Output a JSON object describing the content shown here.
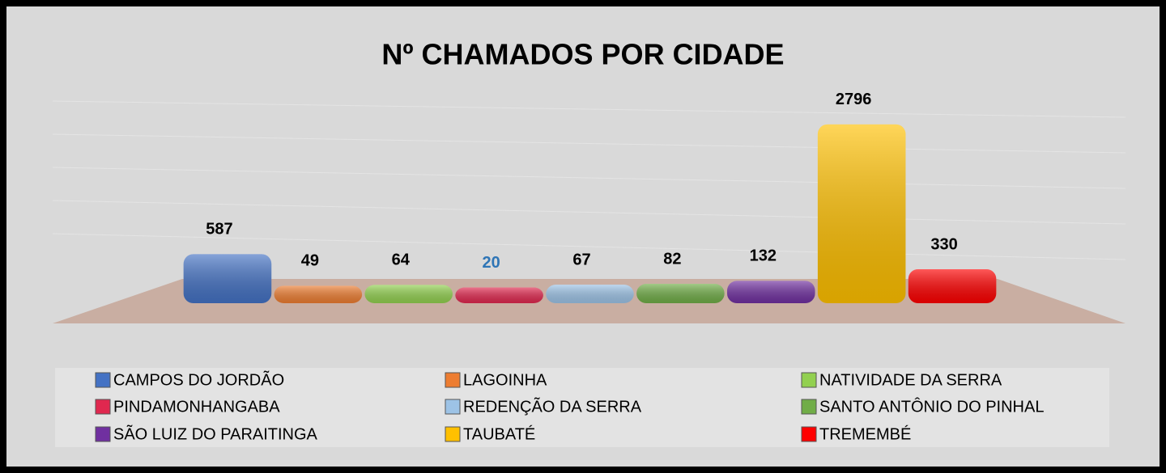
{
  "chart_data": {
    "type": "bar3d",
    "title": "Nº CHAMADOS POR CIDADE",
    "categories": [
      "CAMPOS DO JORDÃO",
      "LAGOINHA",
      "NATIVIDADE DA SERRA",
      "PINDAMONHANGABA",
      "REDENÇÃO DA SERRA",
      "SANTO ANTÔNIO DO PINHAL",
      "SÃO LUIZ DO PARAITINGA",
      "TAUBATÉ",
      "TREMEMBÉ"
    ],
    "values": [
      587,
      49,
      64,
      20,
      67,
      82,
      132,
      2796,
      330
    ],
    "colors": [
      "#4472c4",
      "#ed7d31",
      "#92d050",
      "#e0284f",
      "#9dc3e6",
      "#70ad47",
      "#7030a0",
      "#ffc000",
      "#ff0000"
    ],
    "value_label_colors": [
      "#000000",
      "#000000",
      "#000000",
      "#2e75b6",
      "#000000",
      "#000000",
      "#000000",
      "#000000",
      "#000000"
    ],
    "ylim": [
      0,
      3000
    ],
    "grid": true,
    "legend": "bottom"
  }
}
